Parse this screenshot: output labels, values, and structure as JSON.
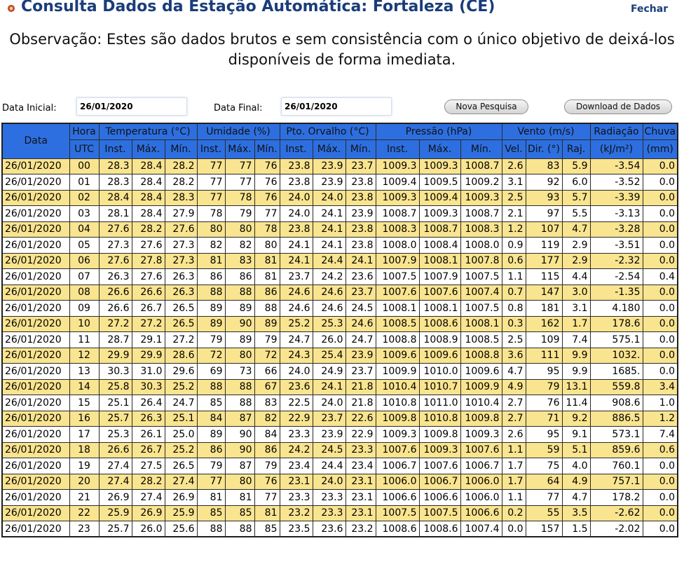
{
  "header": {
    "title": "Consulta Dados da Estação Automática: Fortaleza (CE)",
    "close_label": "Fechar",
    "title_color": "#1a3d7a"
  },
  "note": "Observação: Estes são dados brutos e sem consistência com o único objetivo de deixá-los disponíveis de forma imediata.",
  "form": {
    "start_label": "Data Inicial:",
    "start_value": "26/01/2020",
    "end_label": "Data Final:",
    "end_value": "26/01/2020",
    "search_button": "Nova Pesquisa",
    "download_button": "Download de Dados"
  },
  "table": {
    "header_color": "#2d6fe0",
    "odd_row_color": "#f9e48f",
    "group_headers": [
      {
        "label": "Data",
        "colspan": 1,
        "rowspan": 2
      },
      {
        "label": "Hora",
        "colspan": 1,
        "rowspan": 1
      },
      {
        "label": "Temperatura (°C)",
        "colspan": 3,
        "rowspan": 1
      },
      {
        "label": "Umidade (%)",
        "colspan": 3,
        "rowspan": 1
      },
      {
        "label": "Pto. Orvalho (°C)",
        "colspan": 3,
        "rowspan": 1
      },
      {
        "label": "Pressão (hPa)",
        "colspan": 3,
        "rowspan": 1
      },
      {
        "label": "Vento (m/s)",
        "colspan": 3,
        "rowspan": 1
      },
      {
        "label": "Radiação",
        "colspan": 1,
        "rowspan": 1
      },
      {
        "label": "Chuva",
        "colspan": 1,
        "rowspan": 1
      }
    ],
    "sub_headers": [
      "UTC",
      "Inst.",
      "Máx.",
      "Mín.",
      "Inst.",
      "Máx.",
      "Mín.",
      "Inst.",
      "Máx.",
      "Mín.",
      "Inst.",
      "Máx.",
      "Mín.",
      "Vel.",
      "Dir. (°)",
      "Raj.",
      "(kJ/m²)",
      "(mm)"
    ],
    "rows": [
      [
        "26/01/2020",
        "00",
        "28.3",
        "28.4",
        "28.2",
        "77",
        "77",
        "76",
        "23.8",
        "23.9",
        "23.7",
        "1009.3",
        "1009.3",
        "1008.7",
        "2.6",
        "83",
        "5.9",
        "-3.54",
        "0.0"
      ],
      [
        "26/01/2020",
        "01",
        "28.3",
        "28.4",
        "28.2",
        "77",
        "77",
        "76",
        "23.8",
        "23.9",
        "23.8",
        "1009.4",
        "1009.5",
        "1009.2",
        "3.1",
        "92",
        "6.0",
        "-3.52",
        "0.0"
      ],
      [
        "26/01/2020",
        "02",
        "28.4",
        "28.4",
        "28.3",
        "77",
        "78",
        "76",
        "24.0",
        "24.0",
        "23.8",
        "1009.3",
        "1009.4",
        "1009.3",
        "2.5",
        "93",
        "5.7",
        "-3.39",
        "0.0"
      ],
      [
        "26/01/2020",
        "03",
        "28.1",
        "28.4",
        "27.9",
        "78",
        "79",
        "77",
        "24.0",
        "24.1",
        "23.9",
        "1008.7",
        "1009.3",
        "1008.7",
        "2.1",
        "97",
        "5.5",
        "-3.13",
        "0.0"
      ],
      [
        "26/01/2020",
        "04",
        "27.6",
        "28.2",
        "27.6",
        "80",
        "80",
        "78",
        "23.8",
        "24.1",
        "23.8",
        "1008.3",
        "1008.7",
        "1008.3",
        "1.2",
        "107",
        "4.7",
        "-3.28",
        "0.0"
      ],
      [
        "26/01/2020",
        "05",
        "27.3",
        "27.6",
        "27.3",
        "82",
        "82",
        "80",
        "24.1",
        "24.1",
        "23.8",
        "1008.0",
        "1008.4",
        "1008.0",
        "0.9",
        "119",
        "2.9",
        "-3.51",
        "0.0"
      ],
      [
        "26/01/2020",
        "06",
        "27.6",
        "27.8",
        "27.3",
        "81",
        "83",
        "81",
        "24.1",
        "24.4",
        "24.1",
        "1007.9",
        "1008.1",
        "1007.8",
        "0.6",
        "177",
        "2.9",
        "-2.32",
        "0.0"
      ],
      [
        "26/01/2020",
        "07",
        "26.3",
        "27.6",
        "26.3",
        "86",
        "86",
        "81",
        "23.7",
        "24.2",
        "23.6",
        "1007.5",
        "1007.9",
        "1007.5",
        "1.1",
        "115",
        "4.4",
        "-2.54",
        "0.4"
      ],
      [
        "26/01/2020",
        "08",
        "26.6",
        "26.6",
        "26.3",
        "88",
        "88",
        "86",
        "24.6",
        "24.6",
        "23.7",
        "1007.6",
        "1007.6",
        "1007.4",
        "0.7",
        "147",
        "3.0",
        "-1.35",
        "0.0"
      ],
      [
        "26/01/2020",
        "09",
        "26.6",
        "26.7",
        "26.5",
        "89",
        "89",
        "88",
        "24.6",
        "24.6",
        "24.5",
        "1008.1",
        "1008.1",
        "1007.5",
        "0.8",
        "181",
        "3.1",
        "4.180",
        "0.0"
      ],
      [
        "26/01/2020",
        "10",
        "27.2",
        "27.2",
        "26.5",
        "89",
        "90",
        "89",
        "25.2",
        "25.3",
        "24.6",
        "1008.5",
        "1008.6",
        "1008.1",
        "0.3",
        "162",
        "1.7",
        "178.6",
        "0.0"
      ],
      [
        "26/01/2020",
        "11",
        "28.7",
        "29.1",
        "27.2",
        "79",
        "89",
        "79",
        "24.7",
        "26.0",
        "24.7",
        "1008.8",
        "1008.9",
        "1008.5",
        "2.5",
        "109",
        "7.4",
        "575.1",
        "0.0"
      ],
      [
        "26/01/2020",
        "12",
        "29.9",
        "29.9",
        "28.6",
        "72",
        "80",
        "72",
        "24.3",
        "25.4",
        "23.9",
        "1009.6",
        "1009.6",
        "1008.8",
        "3.6",
        "111",
        "9.9",
        "1032.",
        "0.0"
      ],
      [
        "26/01/2020",
        "13",
        "30.3",
        "31.0",
        "29.6",
        "69",
        "73",
        "66",
        "24.0",
        "24.9",
        "23.7",
        "1009.9",
        "1010.0",
        "1009.6",
        "4.7",
        "95",
        "9.9",
        "1685.",
        "0.0"
      ],
      [
        "26/01/2020",
        "14",
        "25.8",
        "30.3",
        "25.2",
        "88",
        "88",
        "67",
        "23.6",
        "24.1",
        "21.8",
        "1010.4",
        "1010.7",
        "1009.9",
        "4.9",
        "79",
        "13.1",
        "559.8",
        "3.4"
      ],
      [
        "26/01/2020",
        "15",
        "25.1",
        "26.4",
        "24.7",
        "85",
        "88",
        "83",
        "22.5",
        "24.0",
        "21.8",
        "1010.8",
        "1011.0",
        "1010.4",
        "2.7",
        "76",
        "11.4",
        "908.6",
        "1.0"
      ],
      [
        "26/01/2020",
        "16",
        "25.7",
        "26.3",
        "25.1",
        "84",
        "87",
        "82",
        "22.9",
        "23.7",
        "22.6",
        "1009.8",
        "1010.8",
        "1009.8",
        "2.7",
        "71",
        "9.2",
        "886.5",
        "1.2"
      ],
      [
        "26/01/2020",
        "17",
        "25.3",
        "26.1",
        "25.0",
        "89",
        "90",
        "84",
        "23.3",
        "23.9",
        "22.9",
        "1009.3",
        "1009.8",
        "1009.3",
        "2.6",
        "95",
        "9.1",
        "573.1",
        "7.4"
      ],
      [
        "26/01/2020",
        "18",
        "26.6",
        "26.7",
        "25.2",
        "86",
        "90",
        "86",
        "24.2",
        "24.5",
        "23.3",
        "1007.6",
        "1009.3",
        "1007.6",
        "1.1",
        "59",
        "5.1",
        "859.6",
        "0.6"
      ],
      [
        "26/01/2020",
        "19",
        "27.4",
        "27.5",
        "26.5",
        "79",
        "87",
        "79",
        "23.4",
        "24.4",
        "23.4",
        "1006.7",
        "1007.6",
        "1006.7",
        "1.7",
        "75",
        "4.0",
        "760.1",
        "0.0"
      ],
      [
        "26/01/2020",
        "20",
        "27.4",
        "28.2",
        "27.4",
        "77",
        "80",
        "76",
        "23.1",
        "24.0",
        "23.1",
        "1006.0",
        "1006.7",
        "1006.0",
        "1.7",
        "64",
        "4.9",
        "757.1",
        "0.0"
      ],
      [
        "26/01/2020",
        "21",
        "26.9",
        "27.4",
        "26.9",
        "81",
        "81",
        "77",
        "23.3",
        "23.3",
        "23.1",
        "1006.6",
        "1006.6",
        "1006.0",
        "1.1",
        "77",
        "4.7",
        "178.2",
        "0.0"
      ],
      [
        "26/01/2020",
        "22",
        "25.9",
        "26.9",
        "25.9",
        "85",
        "85",
        "81",
        "23.2",
        "23.3",
        "23.1",
        "1007.5",
        "1007.5",
        "1006.6",
        "0.2",
        "55",
        "3.5",
        "-2.62",
        "0.0"
      ],
      [
        "26/01/2020",
        "23",
        "25.7",
        "26.0",
        "25.6",
        "88",
        "88",
        "85",
        "23.5",
        "23.6",
        "23.2",
        "1008.6",
        "1008.6",
        "1007.4",
        "0.0",
        "157",
        "1.5",
        "-2.02",
        "0.0"
      ]
    ]
  }
}
